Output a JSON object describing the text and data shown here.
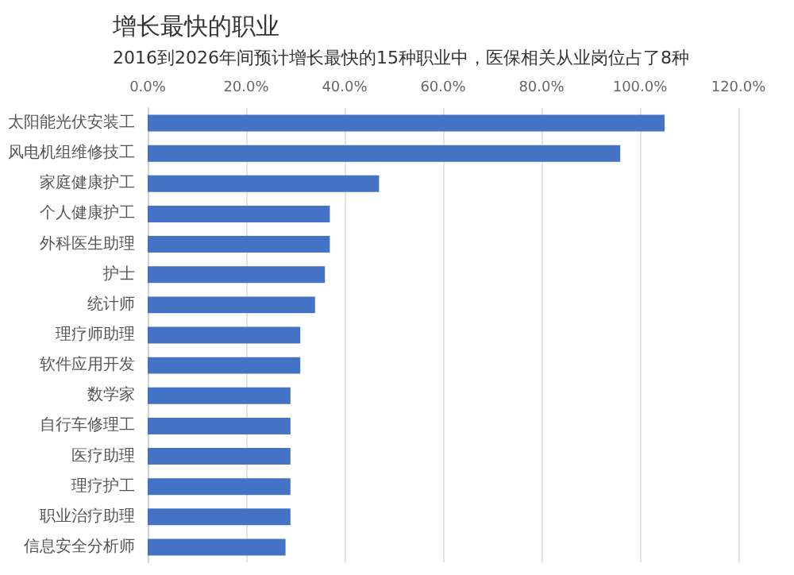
{
  "chart_data": {
    "type": "bar",
    "orientation": "horizontal",
    "title": "增长最快的职业",
    "subtitle": "2016到2026年间预计增长最快的15种职业中，医保相关从业岗位占了8种",
    "categories": [
      "太阳能光伏安装工",
      "风电机组维修技工",
      "家庭健康护工",
      "个人健康护工",
      "外科医生助理",
      "护士",
      "统计师",
      "理疗师助理",
      "软件应用开发",
      "数学家",
      "自行车修理工",
      "医疗助理",
      "理疗护工",
      "职业治疗助理",
      "信息安全分析师"
    ],
    "values": [
      105,
      96,
      47,
      37,
      37,
      36,
      34,
      31,
      31,
      29,
      29,
      29,
      29,
      29,
      28
    ],
    "color": "#4472c4",
    "xlim": [
      0,
      120
    ],
    "xticks": [
      {
        "value": 0,
        "label": "0.0%"
      },
      {
        "value": 20,
        "label": "20.0%"
      },
      {
        "value": 40,
        "label": "40.0%"
      },
      {
        "value": 60,
        "label": "60.0%"
      },
      {
        "value": 80,
        "label": "80.0%"
      },
      {
        "value": 100,
        "label": "100.0%"
      },
      {
        "value": 120,
        "label": "120.0%"
      }
    ],
    "grid": "x"
  }
}
